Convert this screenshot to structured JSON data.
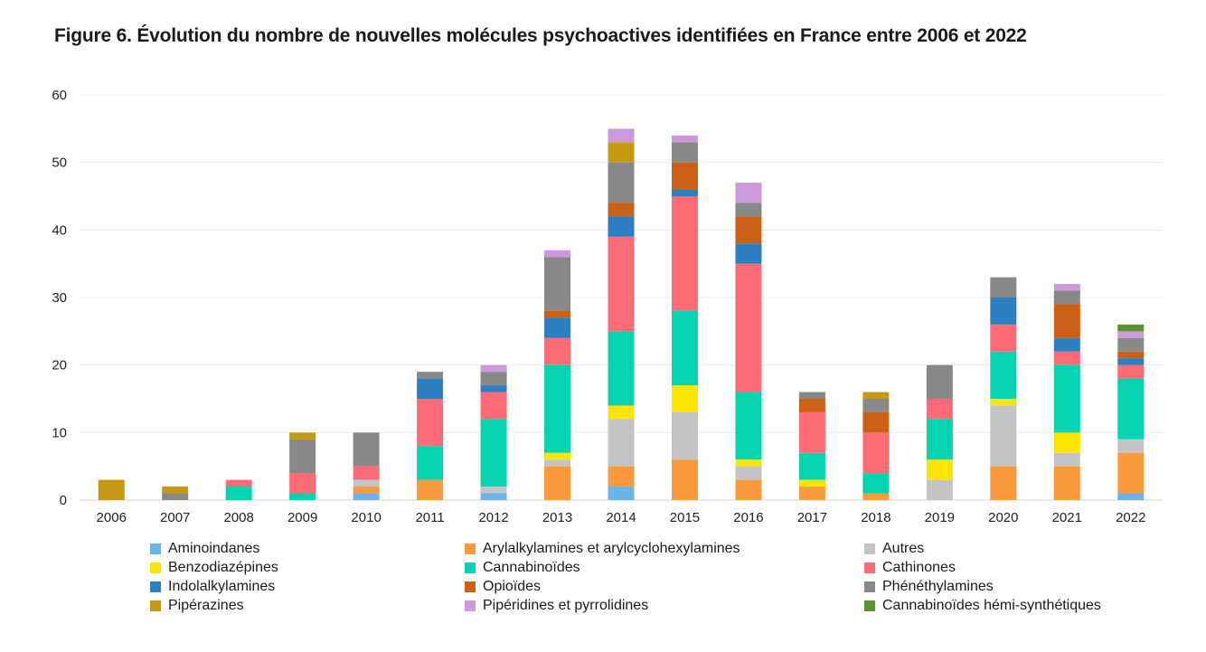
{
  "figure": {
    "title": "Figure 6. Évolution du nombre de nouvelles molécules psychoactives identifiées en France entre 2006 et 2022"
  },
  "chart_data": {
    "type": "bar",
    "stacked": true,
    "title": "Figure 6. Évolution du nombre de nouvelles molécules psychoactives identifiées en France entre 2006 et 2022",
    "xlabel": "",
    "ylabel": "",
    "ylim": [
      0,
      60
    ],
    "yticks": [
      0,
      10,
      20,
      30,
      40,
      50,
      60
    ],
    "grid": true,
    "legend_position": "bottom",
    "categories": [
      "2006",
      "2007",
      "2008",
      "2009",
      "2010",
      "2011",
      "2012",
      "2013",
      "2014",
      "2015",
      "2016",
      "2017",
      "2018",
      "2019",
      "2020",
      "2021",
      "2022"
    ],
    "series": [
      {
        "name": "Aminoindanes",
        "color": "#6ab4ee",
        "values": [
          0,
          0,
          0,
          0,
          1,
          0,
          1,
          0,
          2,
          0,
          0,
          0,
          0,
          0,
          0,
          0,
          1
        ]
      },
      {
        "name": "Arylalkylamines et arylcyclohexylamines",
        "color": "#fb9a3d",
        "values": [
          0,
          0,
          0,
          0,
          1,
          3,
          0,
          5,
          3,
          6,
          3,
          2,
          1,
          0,
          5,
          5,
          6
        ]
      },
      {
        "name": "Autres",
        "color": "#c4c4c4",
        "values": [
          0,
          0,
          0,
          0,
          1,
          0,
          1,
          1,
          7,
          7,
          2,
          0,
          0,
          3,
          9,
          2,
          2
        ]
      },
      {
        "name": "Benzodiazépines",
        "color": "#fce500",
        "values": [
          0,
          0,
          0,
          0,
          0,
          0,
          0,
          1,
          2,
          4,
          1,
          1,
          0,
          3,
          1,
          3,
          0
        ]
      },
      {
        "name": "Cannabinoïdes",
        "color": "#06d4b0",
        "values": [
          0,
          0,
          2,
          1,
          0,
          5,
          10,
          13,
          11,
          11,
          10,
          4,
          3,
          6,
          7,
          10,
          9
        ]
      },
      {
        "name": "Cathinones",
        "color": "#fd6b76",
        "values": [
          0,
          0,
          1,
          3,
          2,
          7,
          4,
          4,
          14,
          17,
          19,
          6,
          6,
          3,
          4,
          2,
          2
        ]
      },
      {
        "name": "Indolalkylamines",
        "color": "#2e7ec3",
        "values": [
          0,
          0,
          0,
          0,
          0,
          3,
          1,
          3,
          3,
          1,
          3,
          0,
          0,
          0,
          4,
          2,
          1
        ]
      },
      {
        "name": "Opioïdes",
        "color": "#cc6016",
        "values": [
          0,
          0,
          0,
          0,
          0,
          0,
          0,
          1,
          2,
          4,
          4,
          2,
          3,
          0,
          0,
          5,
          1
        ]
      },
      {
        "name": "Phénéthylamines",
        "color": "#888888",
        "values": [
          0,
          1,
          0,
          5,
          5,
          1,
          2,
          8,
          6,
          3,
          2,
          1,
          2,
          5,
          3,
          2,
          2
        ]
      },
      {
        "name": "Pipérazines",
        "color": "#c59a12",
        "values": [
          3,
          1,
          0,
          1,
          0,
          0,
          0,
          0,
          3,
          0,
          0,
          0,
          1,
          0,
          0,
          0,
          0
        ]
      },
      {
        "name": "Pipéridines et pyrrolidines",
        "color": "#cc99dc",
        "values": [
          0,
          0,
          0,
          0,
          0,
          0,
          1,
          1,
          2,
          1,
          3,
          0,
          0,
          0,
          0,
          1,
          1
        ]
      },
      {
        "name": "Cannabinoïdes hémi-synthétiques",
        "color": "#5d9432",
        "values": [
          0,
          0,
          0,
          0,
          0,
          0,
          0,
          0,
          0,
          0,
          0,
          0,
          0,
          0,
          0,
          0,
          1
        ]
      }
    ]
  },
  "legend_order": [
    "Aminoindanes",
    "Arylalkylamines et arylcyclohexylamines",
    "Autres",
    "Benzodiazépines",
    "Cannabinoïdes",
    "Cathinones",
    "Indolalkylamines",
    "Opioïdes",
    "Phénéthylamines",
    "Pipérazines",
    "Pipéridines et pyrrolidines",
    "Cannabinoïdes hémi-synthétiques"
  ]
}
